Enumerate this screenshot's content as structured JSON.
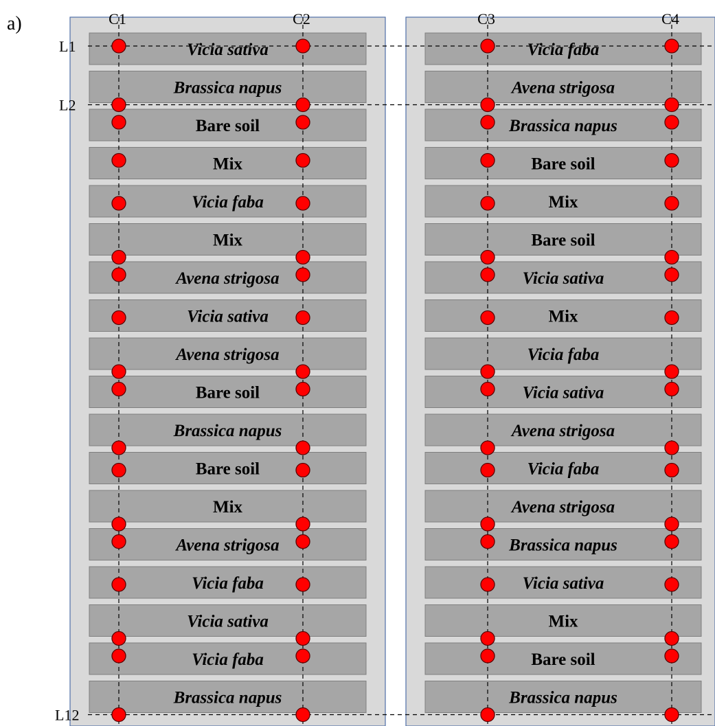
{
  "figure_label": "a)",
  "columns": [
    "C1",
    "C2",
    "C3",
    "C4"
  ],
  "lines": [
    {
      "label": "L1",
      "plot_row": 0
    },
    {
      "label": "L2",
      "plot_row": 1
    },
    {
      "label": "L12",
      "plot_row": 17
    }
  ],
  "blocks": [
    {
      "name": "left-block",
      "columns": [
        "C1",
        "C2"
      ],
      "plots": [
        {
          "label": "Vicia sativa",
          "italic": true
        },
        {
          "label": "Brassica napus",
          "italic": true
        },
        {
          "label": "Bare soil",
          "italic": false
        },
        {
          "label": "Mix",
          "italic": false
        },
        {
          "label": "Vicia faba",
          "italic": true
        },
        {
          "label": "Mix",
          "italic": false
        },
        {
          "label": "Avena strigosa",
          "italic": true
        },
        {
          "label": "Vicia sativa",
          "italic": true
        },
        {
          "label": "Avena strigosa",
          "italic": true
        },
        {
          "label": "Bare soil",
          "italic": false
        },
        {
          "label": "Brassica napus",
          "italic": true
        },
        {
          "label": "Bare soil",
          "italic": false
        },
        {
          "label": "Mix",
          "italic": false
        },
        {
          "label": "Avena strigosa",
          "italic": true
        },
        {
          "label": "Vicia faba",
          "italic": true
        },
        {
          "label": "Vicia sativa",
          "italic": true
        },
        {
          "label": "Vicia faba",
          "italic": true
        },
        {
          "label": "Brassica napus",
          "italic": true
        }
      ]
    },
    {
      "name": "right-block",
      "columns": [
        "C3",
        "C4"
      ],
      "plots": [
        {
          "label": "Vicia faba",
          "italic": true
        },
        {
          "label": "Avena strigosa",
          "italic": true
        },
        {
          "label": "Brassica napus",
          "italic": true
        },
        {
          "label": "Bare soil",
          "italic": false
        },
        {
          "label": "Mix",
          "italic": false
        },
        {
          "label": "Bare soil",
          "italic": false
        },
        {
          "label": "Vicia sativa",
          "italic": true
        },
        {
          "label": "Mix",
          "italic": false
        },
        {
          "label": "Vicia faba",
          "italic": true
        },
        {
          "label": "Vicia sativa",
          "italic": true
        },
        {
          "label": "Avena strigosa",
          "italic": true
        },
        {
          "label": "Vicia faba",
          "italic": true
        },
        {
          "label": "Avena strigosa",
          "italic": true
        },
        {
          "label": "Brassica napus",
          "italic": true
        },
        {
          "label": "Vicia sativa",
          "italic": true
        },
        {
          "label": "Mix",
          "italic": false
        },
        {
          "label": "Bare soil",
          "italic": false
        },
        {
          "label": "Brassica napus",
          "italic": true
        }
      ]
    }
  ],
  "sampling_points": {
    "symbol": "red-circle-icon",
    "positions": [
      "top",
      "bottom",
      "top",
      "top",
      "middle",
      "bottom",
      "top",
      "middle",
      "bottom",
      "top",
      "bottom",
      "middle",
      "bottom",
      "top",
      "middle",
      "bottom",
      "top",
      "bottom"
    ]
  },
  "colors": {
    "field_background": "#d9d9d9",
    "field_border": "#4f6fa8",
    "plot_fill": "#a6a6a6",
    "plot_border": "#7f7f7f",
    "sampling_point": "#ff0000",
    "sampling_point_outline": "#5a0000",
    "guide_lines": "#000000"
  }
}
